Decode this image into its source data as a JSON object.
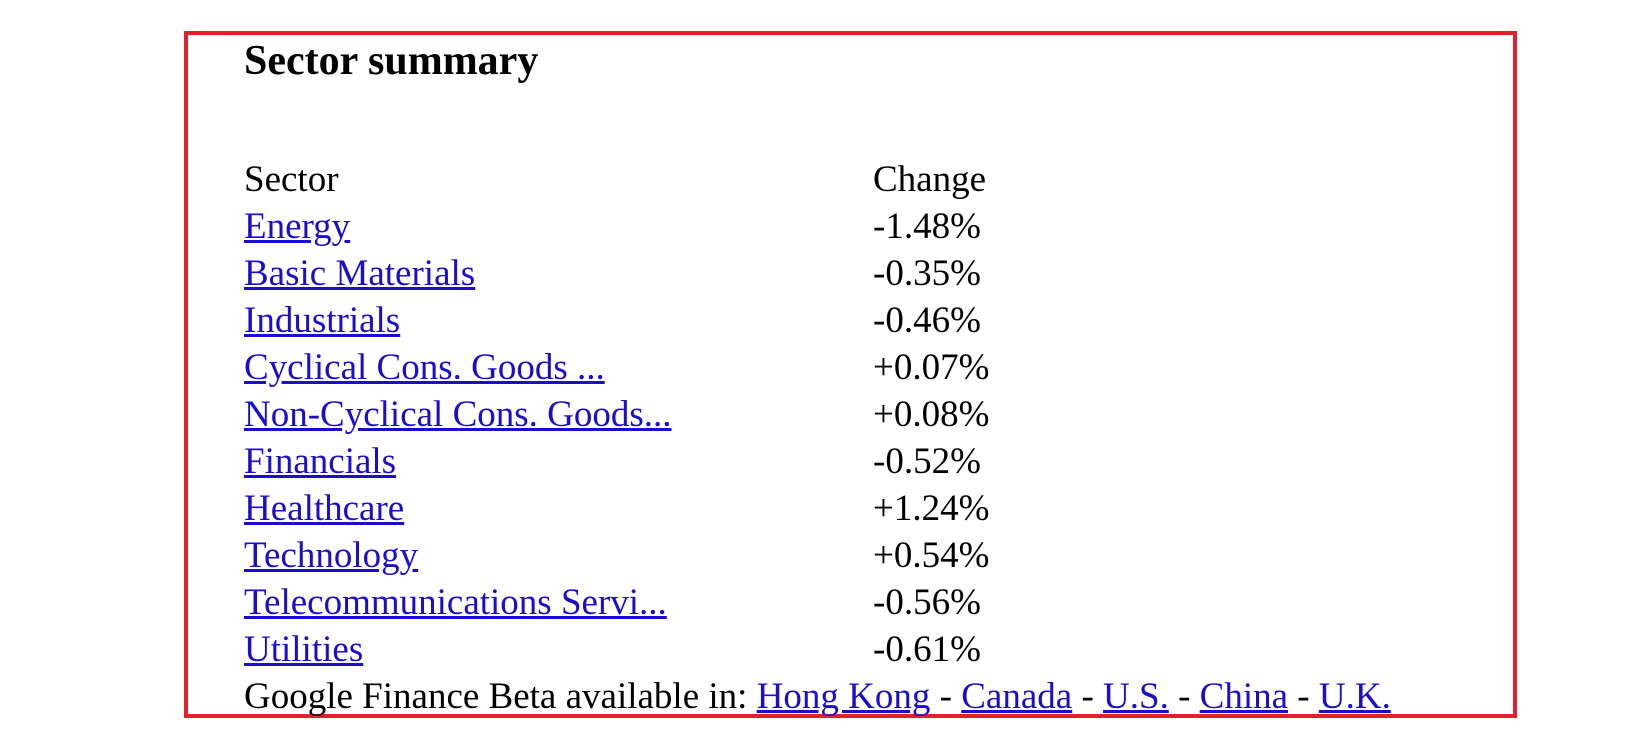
{
  "page": {
    "title": "Sector summary",
    "colors": {
      "frame_border": "#e0202a",
      "link": "#1a0dcc",
      "text": "#000000"
    }
  },
  "table": {
    "headers": {
      "sector": "Sector",
      "change": "Change"
    },
    "rows": [
      {
        "sector": "Energy",
        "change": "-1.48%"
      },
      {
        "sector": "Basic Materials",
        "change": "-0.35%"
      },
      {
        "sector": "Industrials",
        "change": "-0.46%"
      },
      {
        "sector": "Cyclical Cons. Goods ...",
        "change": "+0.07%"
      },
      {
        "sector": "Non-Cyclical Cons. Goods...",
        "change": "+0.08%"
      },
      {
        "sector": "Financials",
        "change": "-0.52%"
      },
      {
        "sector": "Healthcare",
        "change": "+1.24%"
      },
      {
        "sector": "Technology",
        "change": "+0.54%"
      },
      {
        "sector": "Telecommunications Servi...",
        "change": "-0.56%"
      },
      {
        "sector": "Utilities",
        "change": "-0.61%"
      }
    ]
  },
  "footer": {
    "prefix": "Google Finance Beta available in:",
    "separator": "-",
    "links": [
      "Hong Kong",
      "Canada",
      "U.S.",
      "China",
      "U.K."
    ]
  }
}
